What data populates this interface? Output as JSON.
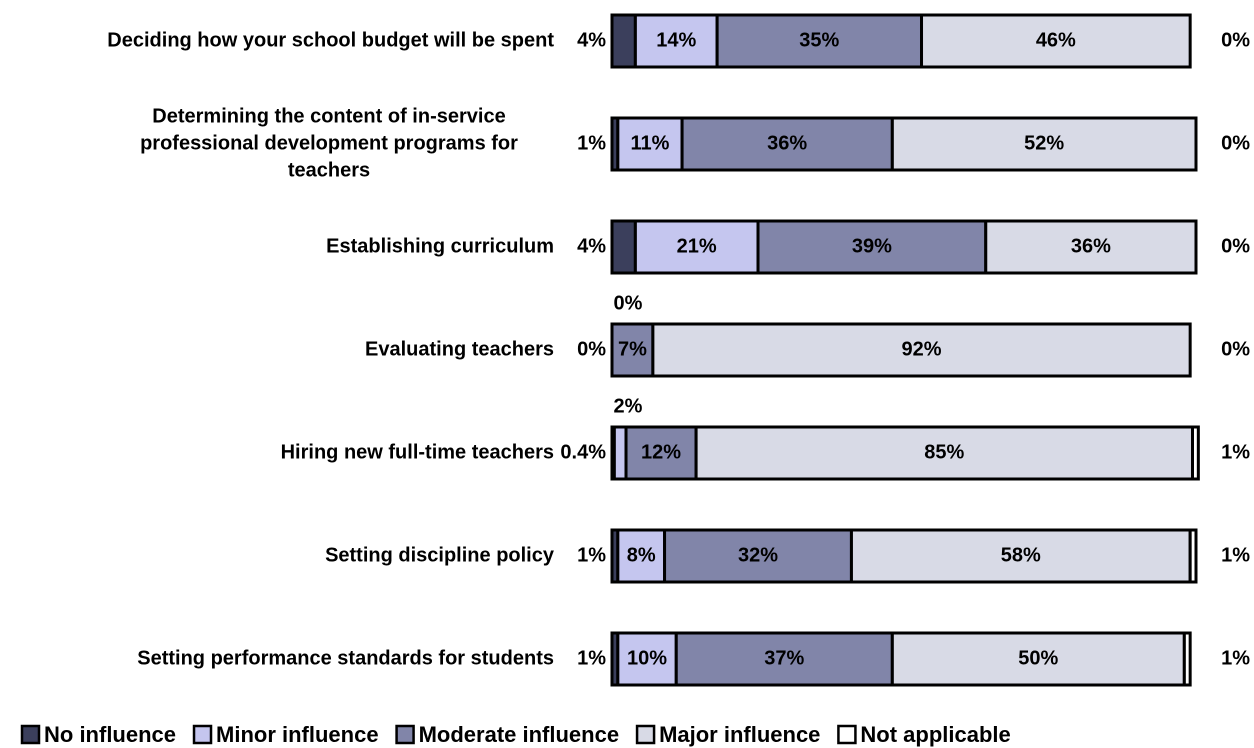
{
  "chart_data": {
    "type": "stacked-bar-horizontal",
    "categories": [
      "Deciding how your school budget will be spent",
      "Determining the content of in-service professional development programs for teachers",
      "Establishing curriculum",
      "Evaluating teachers",
      "Hiring new full-time teachers",
      "Setting discipline policy",
      "Setting performance standards for students"
    ],
    "series": [
      {
        "name": "No influence",
        "color": "#3b3f5c",
        "values": [
          4,
          1,
          4,
          0,
          0.4,
          1,
          1
        ],
        "value_labels": [
          "4%",
          "1%",
          "4%",
          "0%",
          "0.4%",
          "1%",
          "1%"
        ]
      },
      {
        "name": "Minor influence",
        "color": "#c5c6ef",
        "values": [
          14,
          11,
          21,
          0,
          2,
          8,
          10
        ],
        "value_labels": [
          "14%",
          "11%",
          "21%",
          "0%",
          "2%",
          "8%",
          "10%"
        ]
      },
      {
        "name": "Moderate influence",
        "color": "#8185a9",
        "values": [
          35,
          36,
          39,
          7,
          12,
          32,
          37
        ],
        "value_labels": [
          "35%",
          "36%",
          "39%",
          "7%",
          "12%",
          "32%",
          "37%"
        ]
      },
      {
        "name": "Major influence",
        "color": "#d8dae6",
        "values": [
          46,
          52,
          36,
          92,
          85,
          58,
          50
        ],
        "value_labels": [
          "46%",
          "52%",
          "36%",
          "92%",
          "85%",
          "58%",
          "50%"
        ]
      },
      {
        "name": "Not applicable",
        "color": "#ffffff",
        "values": [
          0,
          0,
          0,
          0,
          1,
          1,
          1
        ],
        "value_labels": [
          "0%",
          "0%",
          "0%",
          "0%",
          "1%",
          "1%",
          "1%"
        ]
      }
    ],
    "xlim": [
      0,
      100
    ]
  }
}
